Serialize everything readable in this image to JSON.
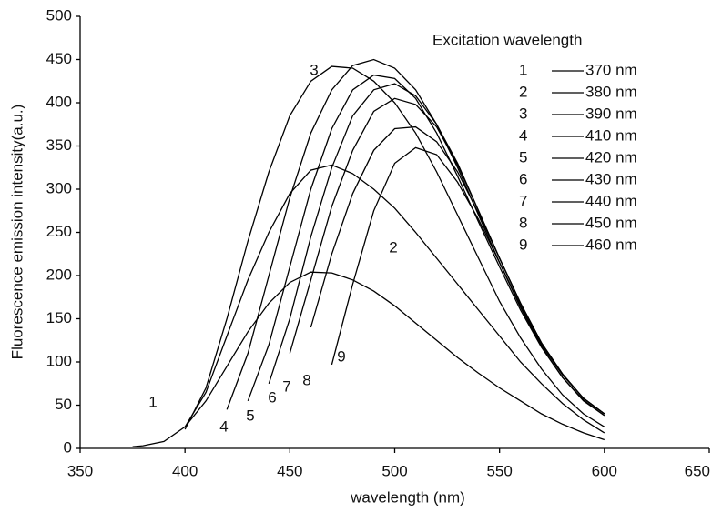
{
  "chart_data": {
    "type": "line",
    "xlabel": "wavelength (nm)",
    "ylabel": "Fluorescence emission intensity(a.u.)",
    "legend_title": "Excitation wavelength",
    "legend_position": "upper right",
    "x": [
      375,
      380,
      390,
      400,
      410,
      420,
      430,
      440,
      450,
      460,
      470,
      480,
      490,
      500,
      510,
      520,
      530,
      540,
      550,
      560,
      570,
      580,
      590,
      600
    ],
    "series": [
      {
        "name": "370 nm",
        "label": "1",
        "color": "#000000",
        "values": [
          2,
          3,
          8,
          25,
          55,
          95,
          135,
          168,
          192,
          204,
          203,
          195,
          182,
          165,
          145,
          125,
          105,
          87,
          70,
          55,
          40,
          28,
          18,
          10
        ]
      },
      {
        "name": "380 nm",
        "label": "2",
        "color": "#000000",
        "values": [
          null,
          null,
          null,
          25,
          65,
          130,
          195,
          250,
          295,
          322,
          328,
          318,
          300,
          278,
          250,
          220,
          190,
          160,
          130,
          100,
          75,
          52,
          33,
          18
        ]
      },
      {
        "name": "390 nm",
        "label": "3",
        "color": "#000000",
        "values": [
          null,
          null,
          null,
          22,
          70,
          150,
          240,
          320,
          385,
          425,
          442,
          440,
          425,
          400,
          365,
          320,
          270,
          220,
          170,
          128,
          92,
          62,
          40,
          25
        ]
      },
      {
        "name": "410 nm",
        "label": "4",
        "color": "#000000",
        "values": [
          null,
          null,
          null,
          null,
          null,
          45,
          110,
          200,
          290,
          365,
          415,
          443,
          450,
          440,
          415,
          375,
          325,
          270,
          215,
          163,
          118,
          82,
          55,
          38
        ]
      },
      {
        "name": "420 nm",
        "label": "5",
        "color": "#000000",
        "values": [
          null,
          null,
          null,
          null,
          null,
          null,
          55,
          120,
          210,
          300,
          370,
          415,
          432,
          428,
          405,
          365,
          315,
          262,
          210,
          160,
          117,
          82,
          56,
          38
        ]
      },
      {
        "name": "430 nm",
        "label": "6",
        "color": "#000000",
        "values": [
          null,
          null,
          null,
          null,
          null,
          null,
          null,
          75,
          150,
          245,
          325,
          385,
          415,
          422,
          408,
          375,
          330,
          275,
          220,
          168,
          122,
          86,
          58,
          40
        ]
      },
      {
        "name": "440 nm",
        "label": "7",
        "color": "#000000",
        "values": [
          null,
          null,
          null,
          null,
          null,
          null,
          null,
          null,
          110,
          195,
          280,
          345,
          390,
          405,
          398,
          372,
          328,
          275,
          220,
          168,
          122,
          86,
          58,
          40
        ]
      },
      {
        "name": "450 nm",
        "label": "8",
        "color": "#000000",
        "values": [
          null,
          null,
          null,
          null,
          null,
          null,
          null,
          null,
          null,
          140,
          225,
          295,
          345,
          370,
          372,
          355,
          320,
          272,
          220,
          168,
          122,
          86,
          58,
          40
        ]
      },
      {
        "name": "460 nm",
        "label": "9",
        "color": "#000000",
        "values": [
          null,
          null,
          null,
          null,
          null,
          null,
          null,
          null,
          null,
          null,
          97,
          190,
          275,
          330,
          348,
          340,
          308,
          265,
          215,
          165,
          120,
          85,
          58,
          40
        ]
      }
    ],
    "xlim": [
      350,
      650
    ],
    "xticks": [
      350,
      400,
      450,
      500,
      550,
      600,
      650
    ],
    "ylim": [
      0,
      500
    ],
    "yticks": [
      0,
      50,
      100,
      150,
      200,
      250,
      300,
      350,
      400,
      450,
      500
    ],
    "grid": false
  }
}
